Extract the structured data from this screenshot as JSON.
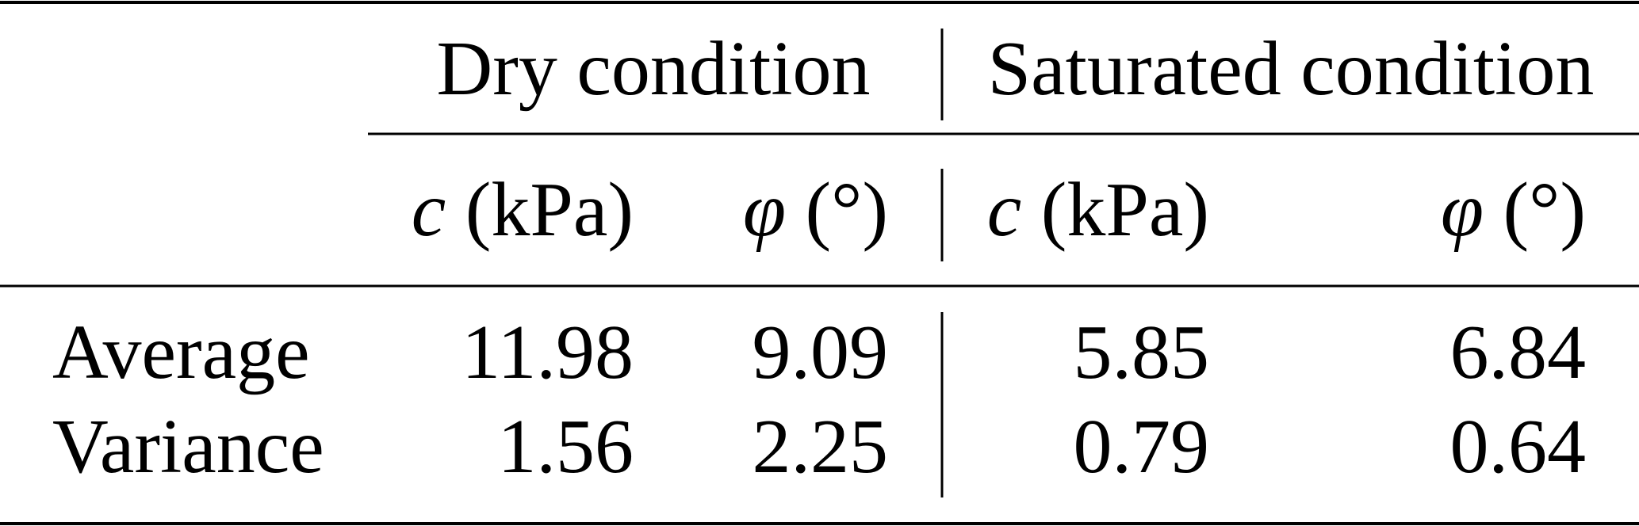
{
  "table": {
    "groups": [
      "Dry condition",
      "Saturated condition"
    ],
    "columns": [
      {
        "symbol": "c",
        "unit": "(kPa)"
      },
      {
        "symbol": "φ",
        "unit": "(°)"
      },
      {
        "symbol": "c",
        "unit": "(kPa)"
      },
      {
        "symbol": "φ",
        "unit": "(°)"
      }
    ],
    "rows": [
      {
        "label": "Average",
        "values": [
          11.98,
          9.09,
          5.85,
          6.84
        ]
      },
      {
        "label": "Variance",
        "values": [
          1.56,
          2.25,
          0.79,
          0.64
        ]
      }
    ]
  }
}
